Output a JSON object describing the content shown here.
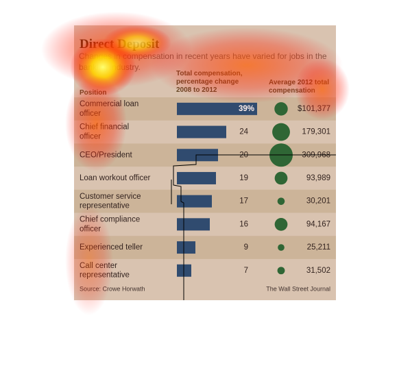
{
  "chart_data": {
    "type": "bar",
    "title": "Direct Deposit",
    "subtitle": "Changes in compensation in recent years have varied for jobs in the banking industry.",
    "category_header": "Position",
    "categories": [
      "Commercial loan officer",
      "Chief financial officer",
      "CEO/President",
      "Loan workout officer",
      "Customer service representative",
      "Chief compliance officer",
      "Experienced teller",
      "Call center representative"
    ],
    "series": [
      {
        "name": "Total compensation, percentage change 2008 to 2012",
        "type": "bar",
        "color": "#1f4e79",
        "values": [
          39,
          24,
          20,
          19,
          17,
          16,
          9,
          7
        ],
        "value_labels": [
          "39%",
          "24",
          "20",
          "19",
          "17",
          "16",
          "9",
          "7"
        ]
      },
      {
        "name": "Average 2012 total compensation",
        "type": "bubble",
        "color": "#1e6b3a",
        "values": [
          101377,
          179301,
          309968,
          93989,
          30201,
          94167,
          25211,
          31502
        ],
        "value_labels": [
          "$101,377",
          "179,301",
          "309,968",
          "93,989",
          "30,201",
          "94,167",
          "25,211",
          "31,502"
        ]
      }
    ],
    "source": "Source: Crowe Horwath",
    "credit": "The Wall Street Journal"
  }
}
